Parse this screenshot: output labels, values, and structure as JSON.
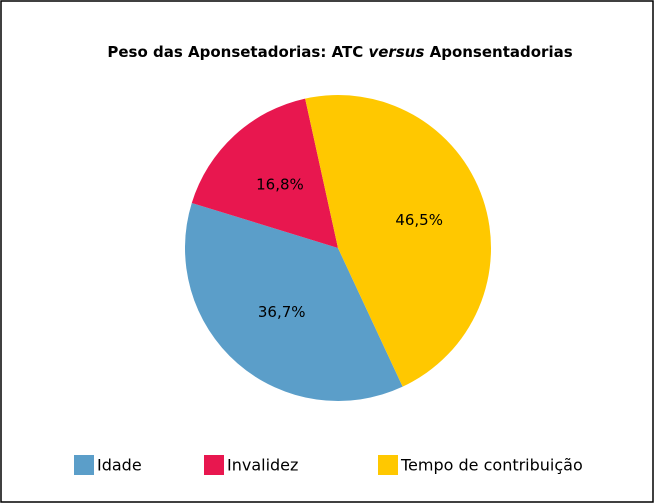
{
  "chart_data": {
    "type": "pie",
    "title": [
      "Peso das Aponsetadorias: ATC ",
      "versus",
      " Aponsentadorias"
    ],
    "categories": [
      "Idade",
      "Invalidez",
      "Tempo de contribuição"
    ],
    "values": [
      36.7,
      16.8,
      46.5
    ],
    "value_labels": [
      "36,7%",
      "16,8%",
      "46,5%"
    ],
    "colors": [
      "#5b9ec9",
      "#e8174f",
      "#ffc800"
    ],
    "legend": "bottom"
  }
}
